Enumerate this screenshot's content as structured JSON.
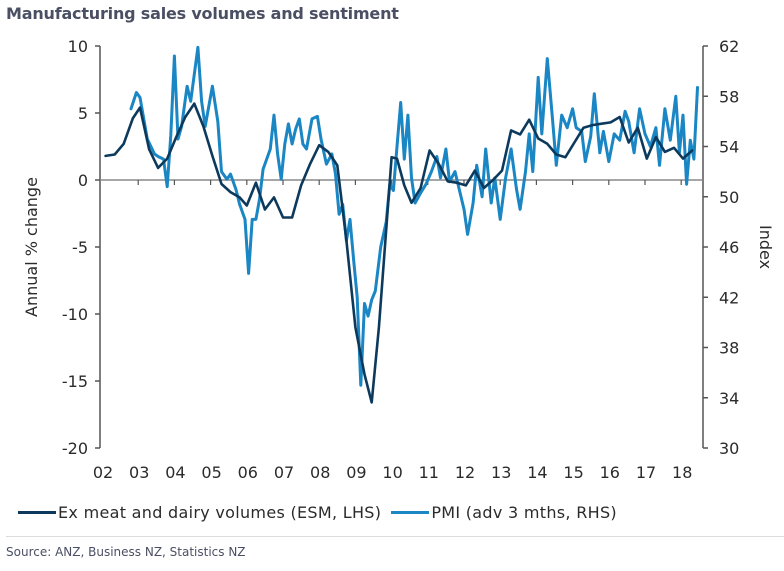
{
  "title": "Manufacturing sales volumes and sentiment",
  "source": "Source: ANZ, Business NZ, Statistics NZ",
  "colors": {
    "esm": "#0d3a5c",
    "pmi": "#1a86c4",
    "axis": "#555555",
    "zero_line": "#888888"
  },
  "chart_data": {
    "type": "line",
    "title": "Manufacturing sales volumes and sentiment",
    "xlabel": "",
    "ylabel": "Annual % change",
    "y2label": "Index",
    "xlim": [
      2002,
      2018.5
    ],
    "ylim": [
      -20,
      10
    ],
    "y2lim": [
      30,
      62
    ],
    "x_tick_labels": [
      "02",
      "03",
      "04",
      "05",
      "06",
      "07",
      "08",
      "09",
      "10",
      "11",
      "12",
      "13",
      "14",
      "15",
      "16",
      "17",
      "18"
    ],
    "y_ticks": [
      "10",
      "5",
      "0",
      "-5",
      "-10",
      "-15",
      "-20"
    ],
    "y2_ticks": [
      "62",
      "58",
      "54",
      "50",
      "46",
      "42",
      "38",
      "34",
      "30"
    ],
    "legend_position": "bottom",
    "series": [
      {
        "name": "Ex meat and dairy volumes (ESM, LHS)",
        "axis": "left",
        "x": [
          2002.1,
          2002.35,
          2002.6,
          2002.85,
          2003.05,
          2003.3,
          2003.55,
          2003.8,
          2004.05,
          2004.3,
          2004.55,
          2004.8,
          2005.05,
          2005.3,
          2005.55,
          2005.8,
          2006.0,
          2006.25,
          2006.5,
          2006.75,
          2007.0,
          2007.25,
          2007.5,
          2007.75,
          2008.0,
          2008.25,
          2008.5,
          2008.75,
          2009.0,
          2009.25,
          2009.45,
          2009.65,
          2009.85,
          2010.0,
          2010.15,
          2010.35,
          2010.55,
          2010.8,
          2011.05,
          2011.3,
          2011.55,
          2011.8,
          2012.05,
          2012.3,
          2012.55,
          2012.8,
          2013.05,
          2013.3,
          2013.55,
          2013.8,
          2014.05,
          2014.3,
          2014.55,
          2014.8,
          2015.05,
          2015.3,
          2015.55,
          2015.8,
          2016.05,
          2016.3,
          2016.55,
          2016.8,
          2017.05,
          2017.3,
          2017.55,
          2017.8,
          2018.05,
          2018.3
        ],
        "values": [
          1.8,
          1.9,
          2.7,
          4.6,
          5.4,
          2.3,
          0.9,
          1.6,
          3.2,
          4.7,
          5.7,
          4.0,
          1.8,
          -0.3,
          -0.9,
          -1.3,
          -1.9,
          -0.2,
          -2.2,
          -1.3,
          -2.8,
          -2.8,
          -0.4,
          1.2,
          2.6,
          2.1,
          1.1,
          -4.5,
          -11.0,
          -14.5,
          -16.6,
          -11.0,
          -3.7,
          1.7,
          1.6,
          -0.4,
          -1.7,
          -0.6,
          2.2,
          1.2,
          -0.1,
          -0.2,
          -0.4,
          0.7,
          -0.6,
          0.0,
          0.7,
          3.7,
          3.4,
          4.5,
          3.1,
          2.7,
          1.9,
          1.7,
          2.8,
          3.9,
          4.1,
          4.2,
          4.3,
          4.7,
          2.8,
          3.9,
          1.6,
          3.2,
          2.1,
          2.4,
          1.6,
          2.2
        ]
      },
      {
        "name": "PMI (adv 3 mths, RHS)",
        "axis": "right",
        "x": [
          2002.8,
          2002.95,
          2003.05,
          2003.25,
          2003.45,
          2003.55,
          2003.7,
          2003.8,
          2003.9,
          2004.0,
          2004.1,
          2004.2,
          2004.35,
          2004.45,
          2004.65,
          2004.75,
          2004.85,
          2005.05,
          2005.2,
          2005.3,
          2005.45,
          2005.55,
          2005.7,
          2005.8,
          2005.95,
          2006.05,
          2006.15,
          2006.25,
          2006.35,
          2006.45,
          2006.55,
          2006.65,
          2006.75,
          2006.85,
          2006.95,
          2007.05,
          2007.15,
          2007.25,
          2007.35,
          2007.45,
          2007.55,
          2007.65,
          2007.8,
          2007.95,
          2008.05,
          2008.2,
          2008.35,
          2008.45,
          2008.55,
          2008.65,
          2008.75,
          2008.85,
          2008.95,
          2009.05,
          2009.15,
          2009.25,
          2009.35,
          2009.45,
          2009.55,
          2009.7,
          2009.85,
          2009.95,
          2010.05,
          2010.15,
          2010.25,
          2010.35,
          2010.45,
          2010.55,
          2010.65,
          2010.8,
          2010.95,
          2011.1,
          2011.25,
          2011.35,
          2011.5,
          2011.6,
          2011.75,
          2011.9,
          2012.0,
          2012.1,
          2012.25,
          2012.35,
          2012.5,
          2012.6,
          2012.75,
          2012.85,
          2013.0,
          2013.15,
          2013.3,
          2013.45,
          2013.55,
          2013.7,
          2013.8,
          2013.9,
          2014.05,
          2014.15,
          2014.3,
          2014.45,
          2014.55,
          2014.7,
          2014.85,
          2015.0,
          2015.1,
          2015.25,
          2015.35,
          2015.5,
          2015.6,
          2015.75,
          2015.85,
          2016.0,
          2016.15,
          2016.3,
          2016.45,
          2016.55,
          2016.7,
          2016.85,
          2017.0,
          2017.15,
          2017.3,
          2017.4,
          2017.55,
          2017.7,
          2017.85,
          2017.95,
          2018.05,
          2018.15,
          2018.25,
          2018.35,
          2018.45
        ],
        "values": [
          57.0,
          58.3,
          57.9,
          54.6,
          53.4,
          53.2,
          53.0,
          50.8,
          54.9,
          61.2,
          54.6,
          55.6,
          58.8,
          57.6,
          61.9,
          57.6,
          55.6,
          58.8,
          56.0,
          52.0,
          51.4,
          51.8,
          50.6,
          49.4,
          48.2,
          43.9,
          48.2,
          48.2,
          49.8,
          52.2,
          53.0,
          53.8,
          56.5,
          53.4,
          51.4,
          54.2,
          55.8,
          54.2,
          55.4,
          56.2,
          54.2,
          53.8,
          56.2,
          56.4,
          54.6,
          52.6,
          53.4,
          51.8,
          48.6,
          49.4,
          46.5,
          48.2,
          45.0,
          42.0,
          35.0,
          41.5,
          40.5,
          41.8,
          42.5,
          46.0,
          48.0,
          51.0,
          50.5,
          54.0,
          57.5,
          53.0,
          56.5,
          51.5,
          49.5,
          50.3,
          51.0,
          52.0,
          53.2,
          51.5,
          53.8,
          51.2,
          52.0,
          50.2,
          49.0,
          47.0,
          49.5,
          52.5,
          50.0,
          53.8,
          49.5,
          51.5,
          48.2,
          51.5,
          53.8,
          50.6,
          49.0,
          52.0,
          55.0,
          52.0,
          59.5,
          55.0,
          61.0,
          56.0,
          52.5,
          56.5,
          55.5,
          57.0,
          55.5,
          55.2,
          52.8,
          54.8,
          58.2,
          53.5,
          55.2,
          52.8,
          55.0,
          54.5,
          56.8,
          56.0,
          53.5,
          57.0,
          55.0,
          54.0,
          55.5,
          52.5,
          57.0,
          54.5,
          58.0,
          53.5,
          56.5,
          51.0,
          54.5,
          53.0,
          58.7
        ]
      }
    ]
  }
}
